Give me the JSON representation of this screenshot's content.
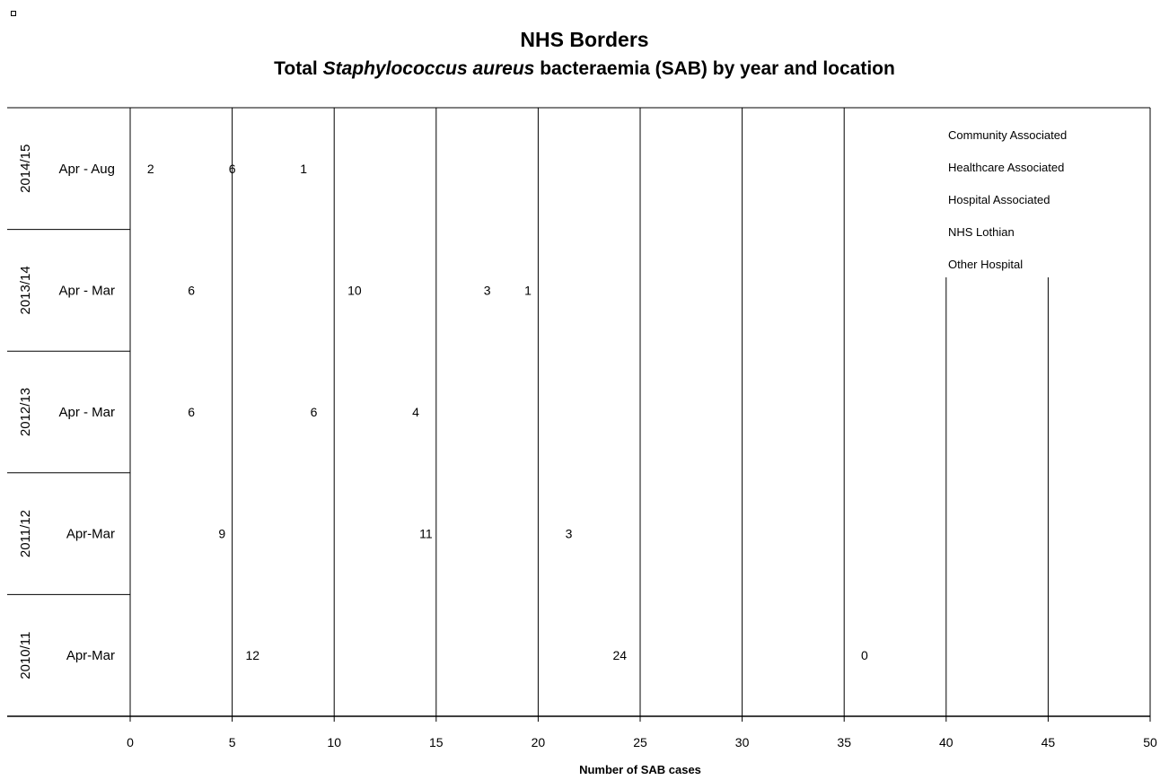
{
  "chart_data": {
    "type": "bar",
    "orientation": "horizontal",
    "stacked": true,
    "title": "NHS Borders",
    "subtitle_parts": [
      {
        "text": "Total ",
        "italic": false
      },
      {
        "text": "Staphylococcus aureus",
        "italic": true
      },
      {
        "text": " bacteraemia (SAB) by year and location",
        "italic": false
      }
    ],
    "xlabel": "Number of SAB cases",
    "xlim": [
      0,
      50
    ],
    "xticks": [
      0,
      5,
      10,
      15,
      20,
      25,
      30,
      35,
      40,
      45,
      50
    ],
    "legend_position": "top-right",
    "grid": true,
    "categories": [
      {
        "year": "2014/15",
        "period": "Apr - Aug"
      },
      {
        "year": "2013/14",
        "period": "Apr - Mar"
      },
      {
        "year": "2012/13",
        "period": "Apr - Mar"
      },
      {
        "year": "2011/12",
        "period": "Apr-Mar"
      },
      {
        "year": "2010/11",
        "period": "Apr-Mar"
      }
    ],
    "series": [
      {
        "name": "Community Associated",
        "values": [
          2,
          6,
          6,
          9,
          12
        ]
      },
      {
        "name": "Healthcare Associated",
        "values": [
          6,
          10,
          6,
          11,
          24
        ]
      },
      {
        "name": "Hospital Associated",
        "values": [
          1,
          3,
          4,
          3,
          0
        ]
      },
      {
        "name": "NHS Lothian",
        "values": [
          null,
          1,
          null,
          null,
          null
        ]
      },
      {
        "name": "Other Hospital",
        "values": [
          null,
          null,
          null,
          null,
          null
        ]
      }
    ]
  }
}
